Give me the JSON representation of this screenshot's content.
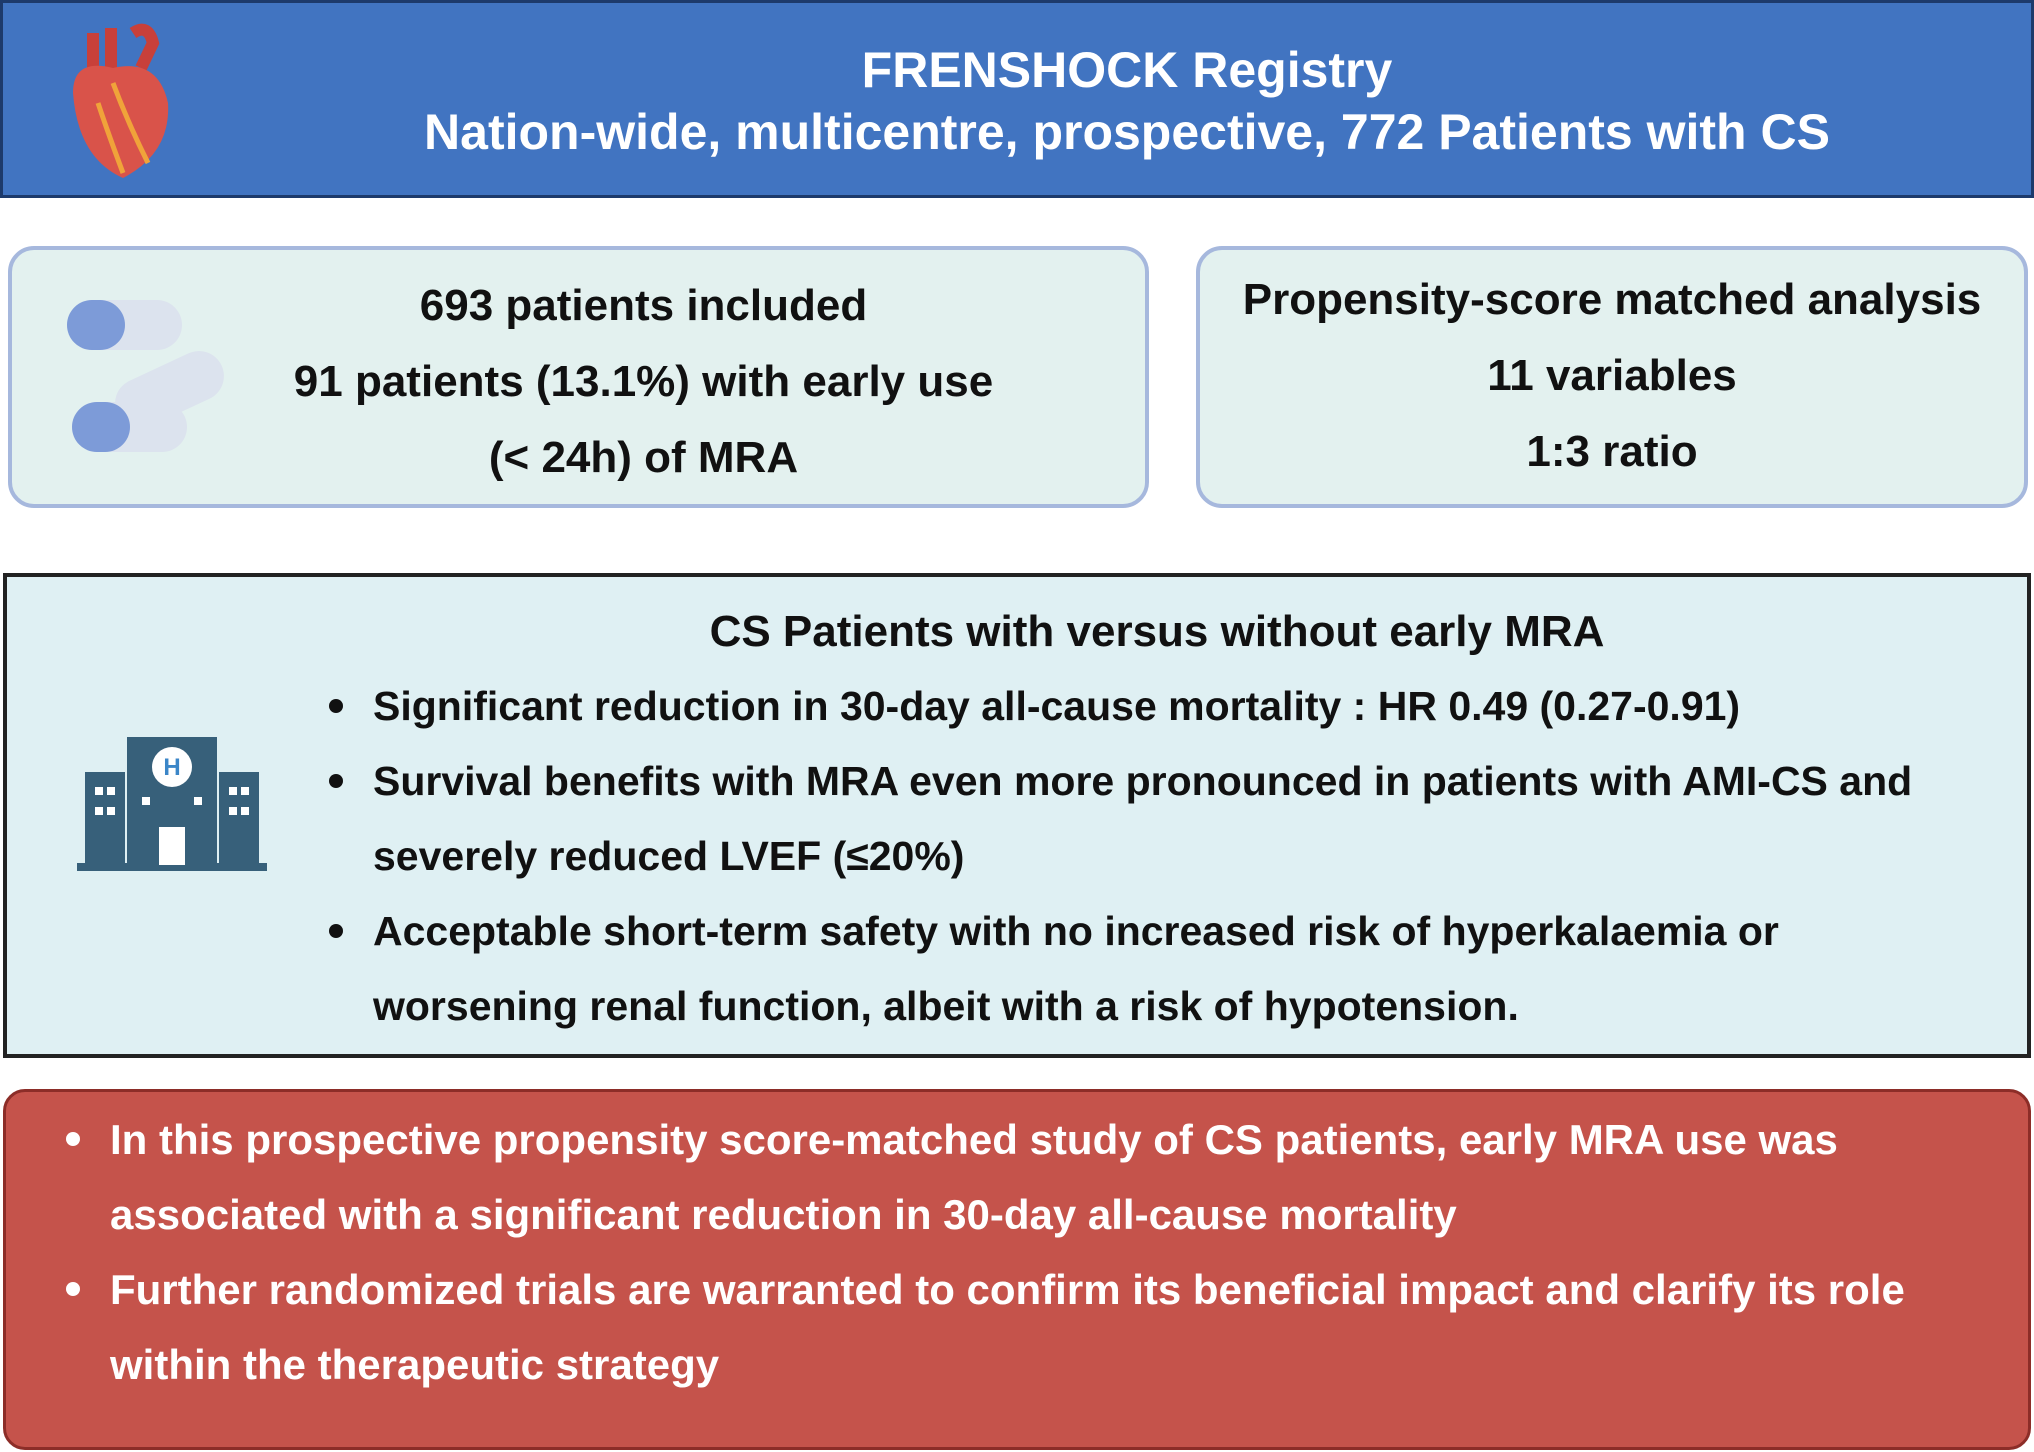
{
  "header": {
    "title": "FRENSHOCK Registry",
    "subtitle": "Nation-wide, multicentre, prospective, 772 Patients with CS"
  },
  "population": {
    "lines": [
      "693 patients included",
      "91 patients (13.1%) with early use",
      "(< 24h) of MRA"
    ]
  },
  "analysis": {
    "lines": [
      "Propensity-score matched analysis",
      "11 variables",
      "1:3 ratio"
    ]
  },
  "results": {
    "heading": "CS Patients with versus without early MRA",
    "bullets": [
      "Significant reduction in 30-day all-cause mortality : HR 0.49 (0.27-0.91)",
      "Survival benefits  with MRA even more pronounced in patients with AMI-CS and severely reduced LVEF (≤20%)",
      "Acceptable short-term safety with no increased risk of hyperkalaemia or worsening renal function, albeit with a risk of hypotension."
    ]
  },
  "conclusion": {
    "bullets": [
      "In this prospective propensity score-matched study of CS patients, early MRA use was associated with a significant reduction in 30-day all-cause mortality",
      "Further randomized trials are warranted to confirm its beneficial impact and clarify its role within the therapeutic strategy"
    ]
  }
}
